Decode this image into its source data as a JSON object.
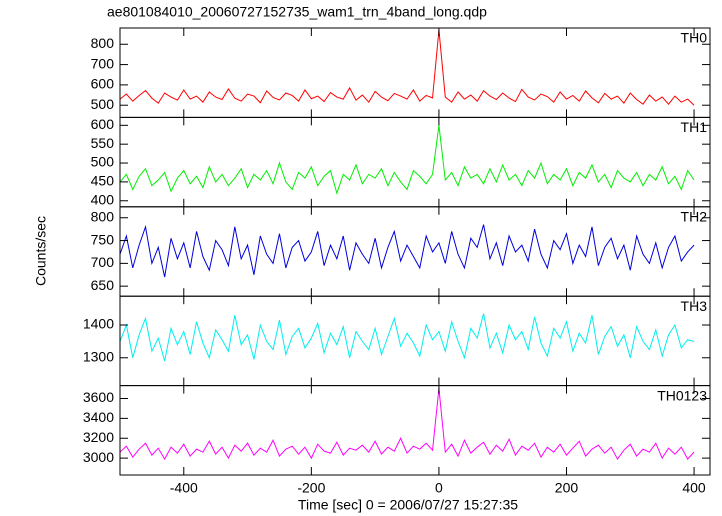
{
  "chart_data": {
    "type": "line",
    "title": "ae801084010_20060727152735_wam1_trn_4band_long.qdp",
    "xlabel": "Time [sec] 0 = 2006/07/27 15:27:35",
    "ylabel": "Counts/sec",
    "xlim": [
      -500,
      425
    ],
    "xticks": [
      -400,
      -200,
      0,
      200,
      400
    ],
    "x": [
      -500,
      -490,
      -480,
      -470,
      -460,
      -450,
      -440,
      -430,
      -420,
      -410,
      -400,
      -390,
      -380,
      -370,
      -360,
      -350,
      -340,
      -330,
      -320,
      -310,
      -300,
      -290,
      -280,
      -270,
      -260,
      -250,
      -240,
      -230,
      -220,
      -210,
      -200,
      -190,
      -180,
      -170,
      -160,
      -150,
      -140,
      -130,
      -120,
      -110,
      -100,
      -90,
      -80,
      -70,
      -60,
      -50,
      -40,
      -30,
      -20,
      -10,
      0,
      10,
      20,
      30,
      40,
      50,
      60,
      70,
      80,
      90,
      100,
      110,
      120,
      130,
      140,
      150,
      160,
      170,
      180,
      190,
      200,
      210,
      220,
      230,
      240,
      250,
      260,
      270,
      280,
      290,
      300,
      310,
      320,
      330,
      340,
      350,
      360,
      370,
      380,
      390,
      400
    ],
    "series": [
      {
        "name": "TH0",
        "color": "#ff0000",
        "ylim": [
          440,
          880
        ],
        "yticks": [
          500,
          600,
          700,
          800
        ],
        "values": [
          530,
          555,
          520,
          548,
          572,
          535,
          510,
          560,
          540,
          525,
          575,
          530,
          545,
          515,
          565,
          540,
          528,
          580,
          535,
          520,
          555,
          545,
          512,
          570,
          538,
          526,
          560,
          548,
          520,
          575,
          532,
          545,
          518,
          562,
          540,
          530,
          585,
          525,
          550,
          515,
          568,
          540,
          522,
          558,
          545,
          530,
          575,
          520,
          548,
          536,
          870,
          540,
          515,
          565,
          530,
          550,
          520,
          572,
          545,
          528,
          560,
          535,
          518,
          578,
          540,
          526,
          555,
          542,
          515,
          565,
          530,
          548,
          520,
          570,
          536,
          512,
          558,
          530,
          545,
          510,
          560,
          528,
          505,
          550,
          520,
          540,
          505,
          545,
          515,
          530,
          500
        ]
      },
      {
        "name": "TH1",
        "color": "#00ee00",
        "ylim": [
          384,
          621
        ],
        "yticks": [
          400,
          450,
          500,
          550,
          600
        ],
        "values": [
          450,
          470,
          430,
          465,
          485,
          440,
          455,
          475,
          425,
          460,
          480,
          445,
          465,
          435,
          490,
          450,
          470,
          440,
          460,
          485,
          435,
          470,
          455,
          480,
          445,
          500,
          450,
          430,
          475,
          460,
          490,
          440,
          465,
          480,
          420,
          470,
          455,
          495,
          445,
          470,
          460,
          485,
          440,
          475,
          450,
          430,
          480,
          465,
          445,
          470,
          600,
          455,
          475,
          440,
          490,
          460,
          470,
          445,
          485,
          450,
          495,
          455,
          470,
          440,
          480,
          460,
          500,
          445,
          470,
          455,
          485,
          440,
          475,
          460,
          495,
          450,
          470,
          435,
          480,
          460,
          450,
          475,
          440,
          470,
          455,
          490,
          445,
          465,
          430,
          480,
          455
        ]
      },
      {
        "name": "TH2",
        "color": "#0000dd",
        "ylim": [
          628,
          824
        ],
        "yticks": [
          650,
          700,
          750,
          800
        ],
        "values": [
          720,
          760,
          690,
          740,
          780,
          700,
          735,
          670,
          755,
          710,
          745,
          690,
          770,
          715,
          685,
          750,
          730,
          695,
          780,
          710,
          740,
          675,
          760,
          720,
          700,
          765,
          690,
          735,
          750,
          705,
          725,
          770,
          695,
          740,
          710,
          760,
          685,
          745,
          720,
          700,
          755,
          690,
          735,
          770,
          705,
          740,
          715,
          690,
          760,
          725,
          745,
          700,
          770,
          720,
          690,
          755,
          735,
          785,
          710,
          745,
          695,
          760,
          725,
          740,
          705,
          775,
          720,
          690,
          750,
          730,
          765,
          700,
          740,
          715,
          780,
          695,
          735,
          755,
          710,
          740,
          685,
          760,
          720,
          700,
          745,
          690,
          735,
          760,
          705,
          725,
          740
        ]
      },
      {
        "name": "TH3",
        "color": "#00eeee",
        "ylim": [
          1215,
          1488
        ],
        "yticks": [
          1300,
          1400
        ],
        "values": [
          1350,
          1400,
          1300,
          1370,
          1420,
          1320,
          1360,
          1290,
          1390,
          1340,
          1380,
          1310,
          1410,
          1345,
          1300,
          1385,
          1355,
          1320,
          1430,
          1340,
          1370,
          1295,
          1400,
          1350,
          1325,
          1415,
          1310,
          1365,
          1390,
          1330,
          1360,
          1405,
          1315,
          1375,
          1340,
          1395,
          1300,
          1380,
          1350,
          1325,
          1390,
          1310,
          1365,
          1420,
          1335,
          1375,
          1345,
          1305,
          1400,
          1355,
          1380,
          1320,
          1410,
          1350,
          1300,
          1390,
          1360,
          1435,
          1330,
          1375,
          1315,
          1400,
          1355,
          1380,
          1325,
          1425,
          1345,
          1305,
          1390,
          1360,
          1410,
          1320,
          1375,
          1345,
          1430,
          1310,
          1365,
          1395,
          1335,
          1370,
          1300,
          1395,
          1350,
          1325,
          1385,
          1305,
          1370,
          1400,
          1330,
          1355,
          1350
        ]
      },
      {
        "name": "TH0123",
        "color": "#ff00ff",
        "ylim": [
          2830,
          3730
        ],
        "yticks": [
          3000,
          3200,
          3400,
          3600
        ],
        "values": [
          3060,
          3120,
          3010,
          3090,
          3150,
          3030,
          3100,
          2990,
          3110,
          3050,
          3140,
          3020,
          3090,
          3060,
          3170,
          3040,
          3110,
          3000,
          3130,
          3070,
          3150,
          3030,
          3100,
          3060,
          3180,
          3020,
          3090,
          3120,
          3040,
          3110,
          3000,
          3140,
          3070,
          3050,
          3160,
          3030,
          3100,
          3080,
          3130,
          3060,
          3170,
          3040,
          3110,
          3070,
          3200,
          3050,
          3120,
          3090,
          3150,
          3080,
          3700,
          3060,
          3140,
          3020,
          3180,
          3050,
          3110,
          3160,
          3040,
          3130,
          3070,
          3190,
          3030,
          3120,
          3080,
          3150,
          3010,
          3110,
          3060,
          3140,
          3030,
          3100,
          3170,
          3020,
          3090,
          3130,
          3050,
          3110,
          2990,
          3080,
          3140,
          3020,
          3090,
          3060,
          3150,
          3000,
          3100,
          3040,
          3110,
          2990,
          3060
        ]
      }
    ]
  }
}
